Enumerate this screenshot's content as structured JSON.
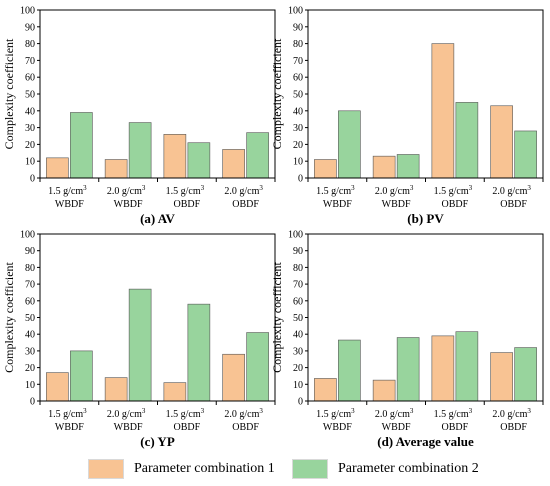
{
  "colors": {
    "series1": "#f8c393",
    "series2": "#98d49d"
  },
  "legend": {
    "items": [
      {
        "label": "Parameter combination 1"
      },
      {
        "label": "Parameter combination 2"
      }
    ]
  },
  "chart_data": [
    {
      "type": "bar",
      "title": "(a) AV",
      "ylabel": "Complexity coefficient",
      "ylim": [
        0,
        100
      ],
      "yticks": [
        "0",
        "10",
        "20",
        "30",
        "40",
        "50",
        "60",
        "70",
        "80",
        "90",
        "100"
      ],
      "categories": [
        {
          "line1": "1.5 g/cm",
          "sup": "3",
          "line2": "WBDF"
        },
        {
          "line1": "2.0 g/cm",
          "sup": "3",
          "line2": "WBDF"
        },
        {
          "line1": "1.5 g/cm",
          "sup": "3",
          "line2": "OBDF"
        },
        {
          "line1": "2.0 g/cm",
          "sup": "3",
          "line2": "OBDF"
        }
      ],
      "series": [
        {
          "name": "Parameter combination 1",
          "values": [
            12,
            11,
            26,
            17
          ]
        },
        {
          "name": "Parameter combination 2",
          "values": [
            39,
            33,
            21,
            27
          ]
        }
      ]
    },
    {
      "type": "bar",
      "title": "(b) PV",
      "ylabel": "Complexity coefficient",
      "ylim": [
        0,
        100
      ],
      "yticks": [
        "0",
        "10",
        "20",
        "30",
        "40",
        "50",
        "60",
        "70",
        "80",
        "90",
        "100"
      ],
      "categories": [
        {
          "line1": "1.5 g/cm",
          "sup": "3",
          "line2": "WBDF"
        },
        {
          "line1": "2.0 g/cm",
          "sup": "3",
          "line2": "WBDF"
        },
        {
          "line1": "1.5 g/cm",
          "sup": "3",
          "line2": "OBDF"
        },
        {
          "line1": "2.0 g/cm",
          "sup": "3",
          "line2": "OBDF"
        }
      ],
      "series": [
        {
          "name": "Parameter combination 1",
          "values": [
            11,
            13,
            80,
            43
          ]
        },
        {
          "name": "Parameter combination 2",
          "values": [
            40,
            14,
            45,
            28
          ]
        }
      ]
    },
    {
      "type": "bar",
      "title": "(c) YP",
      "ylabel": "Complexity coefficient",
      "ylim": [
        0,
        100
      ],
      "yticks": [
        "0",
        "10",
        "20",
        "30",
        "40",
        "50",
        "60",
        "70",
        "80",
        "90",
        "100"
      ],
      "categories": [
        {
          "line1": "1.5 g/cm",
          "sup": "3",
          "line2": "WBDF"
        },
        {
          "line1": "2.0 g/cm",
          "sup": "3",
          "line2": "WBDF"
        },
        {
          "line1": "1.5 g/cm",
          "sup": "3",
          "line2": "OBDF"
        },
        {
          "line1": "2.0 g/cm",
          "sup": "3",
          "line2": "OBDF"
        }
      ],
      "series": [
        {
          "name": "Parameter combination 1",
          "values": [
            17,
            14,
            11,
            28
          ]
        },
        {
          "name": "Parameter combination 2",
          "values": [
            30,
            67,
            58,
            41
          ]
        }
      ]
    },
    {
      "type": "bar",
      "title": "(d) Average value",
      "ylabel": "Complexity coefficient",
      "ylim": [
        0,
        100
      ],
      "yticks": [
        "0",
        "10",
        "20",
        "30",
        "40",
        "50",
        "60",
        "70",
        "80",
        "90",
        "100"
      ],
      "categories": [
        {
          "line1": "1.5 g/cm",
          "sup": "3",
          "line2": "WBDF"
        },
        {
          "line1": "2.0 g/cm",
          "sup": "3",
          "line2": "WBDF"
        },
        {
          "line1": "1.5 g/cm",
          "sup": "3",
          "line2": "OBDF"
        },
        {
          "line1": "2.0 g/cm",
          "sup": "3",
          "line2": "OBDF"
        }
      ],
      "series": [
        {
          "name": "Parameter combination 1",
          "values": [
            13.5,
            12.5,
            39,
            29
          ]
        },
        {
          "name": "Parameter combination 2",
          "values": [
            36.5,
            38,
            41.5,
            32
          ]
        }
      ]
    }
  ]
}
